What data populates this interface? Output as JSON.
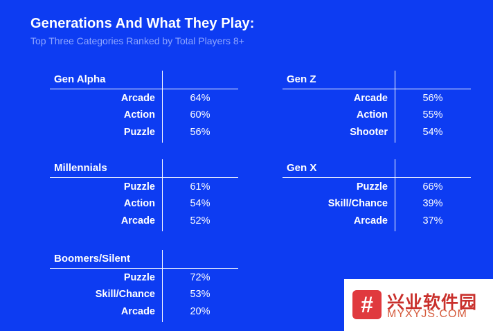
{
  "title": "Generations And What They Play:",
  "subtitle": "Top Three Categories Ranked by Total Players 8+",
  "chart_data": [
    {
      "type": "table",
      "title": "Gen Alpha",
      "categories": [
        "Arcade",
        "Action",
        "Puzzle"
      ],
      "values": [
        64,
        60,
        56
      ],
      "labels": [
        "64%",
        "60%",
        "56%"
      ]
    },
    {
      "type": "table",
      "title": "Gen Z",
      "categories": [
        "Arcade",
        "Action",
        "Shooter"
      ],
      "values": [
        56,
        55,
        54
      ],
      "labels": [
        "56%",
        "55%",
        "54%"
      ]
    },
    {
      "type": "table",
      "title": "Millennials",
      "categories": [
        "Puzzle",
        "Action",
        "Arcade"
      ],
      "values": [
        61,
        54,
        52
      ],
      "labels": [
        "61%",
        "54%",
        "52%"
      ]
    },
    {
      "type": "table",
      "title": "Gen X",
      "categories": [
        "Puzzle",
        "Skill/Chance",
        "Arcade"
      ],
      "values": [
        66,
        39,
        37
      ],
      "labels": [
        "66%",
        "39%",
        "37%"
      ]
    },
    {
      "type": "table",
      "title": "Boomers/Silent",
      "categories": [
        "Puzzle",
        "Skill/Chance",
        "Arcade"
      ],
      "values": [
        72,
        53,
        20
      ],
      "labels": [
        "72%",
        "53%",
        "20%"
      ]
    }
  ],
  "watermark": {
    "logo_glyph": "#",
    "chinese_text": "兴业软件园",
    "site_text": "MYXYJS.COM"
  },
  "colors": {
    "background": "#0d3cf2",
    "text": "#ffffff",
    "subtitle": "#8fa6ff",
    "watermark_red": "#e0393e"
  }
}
